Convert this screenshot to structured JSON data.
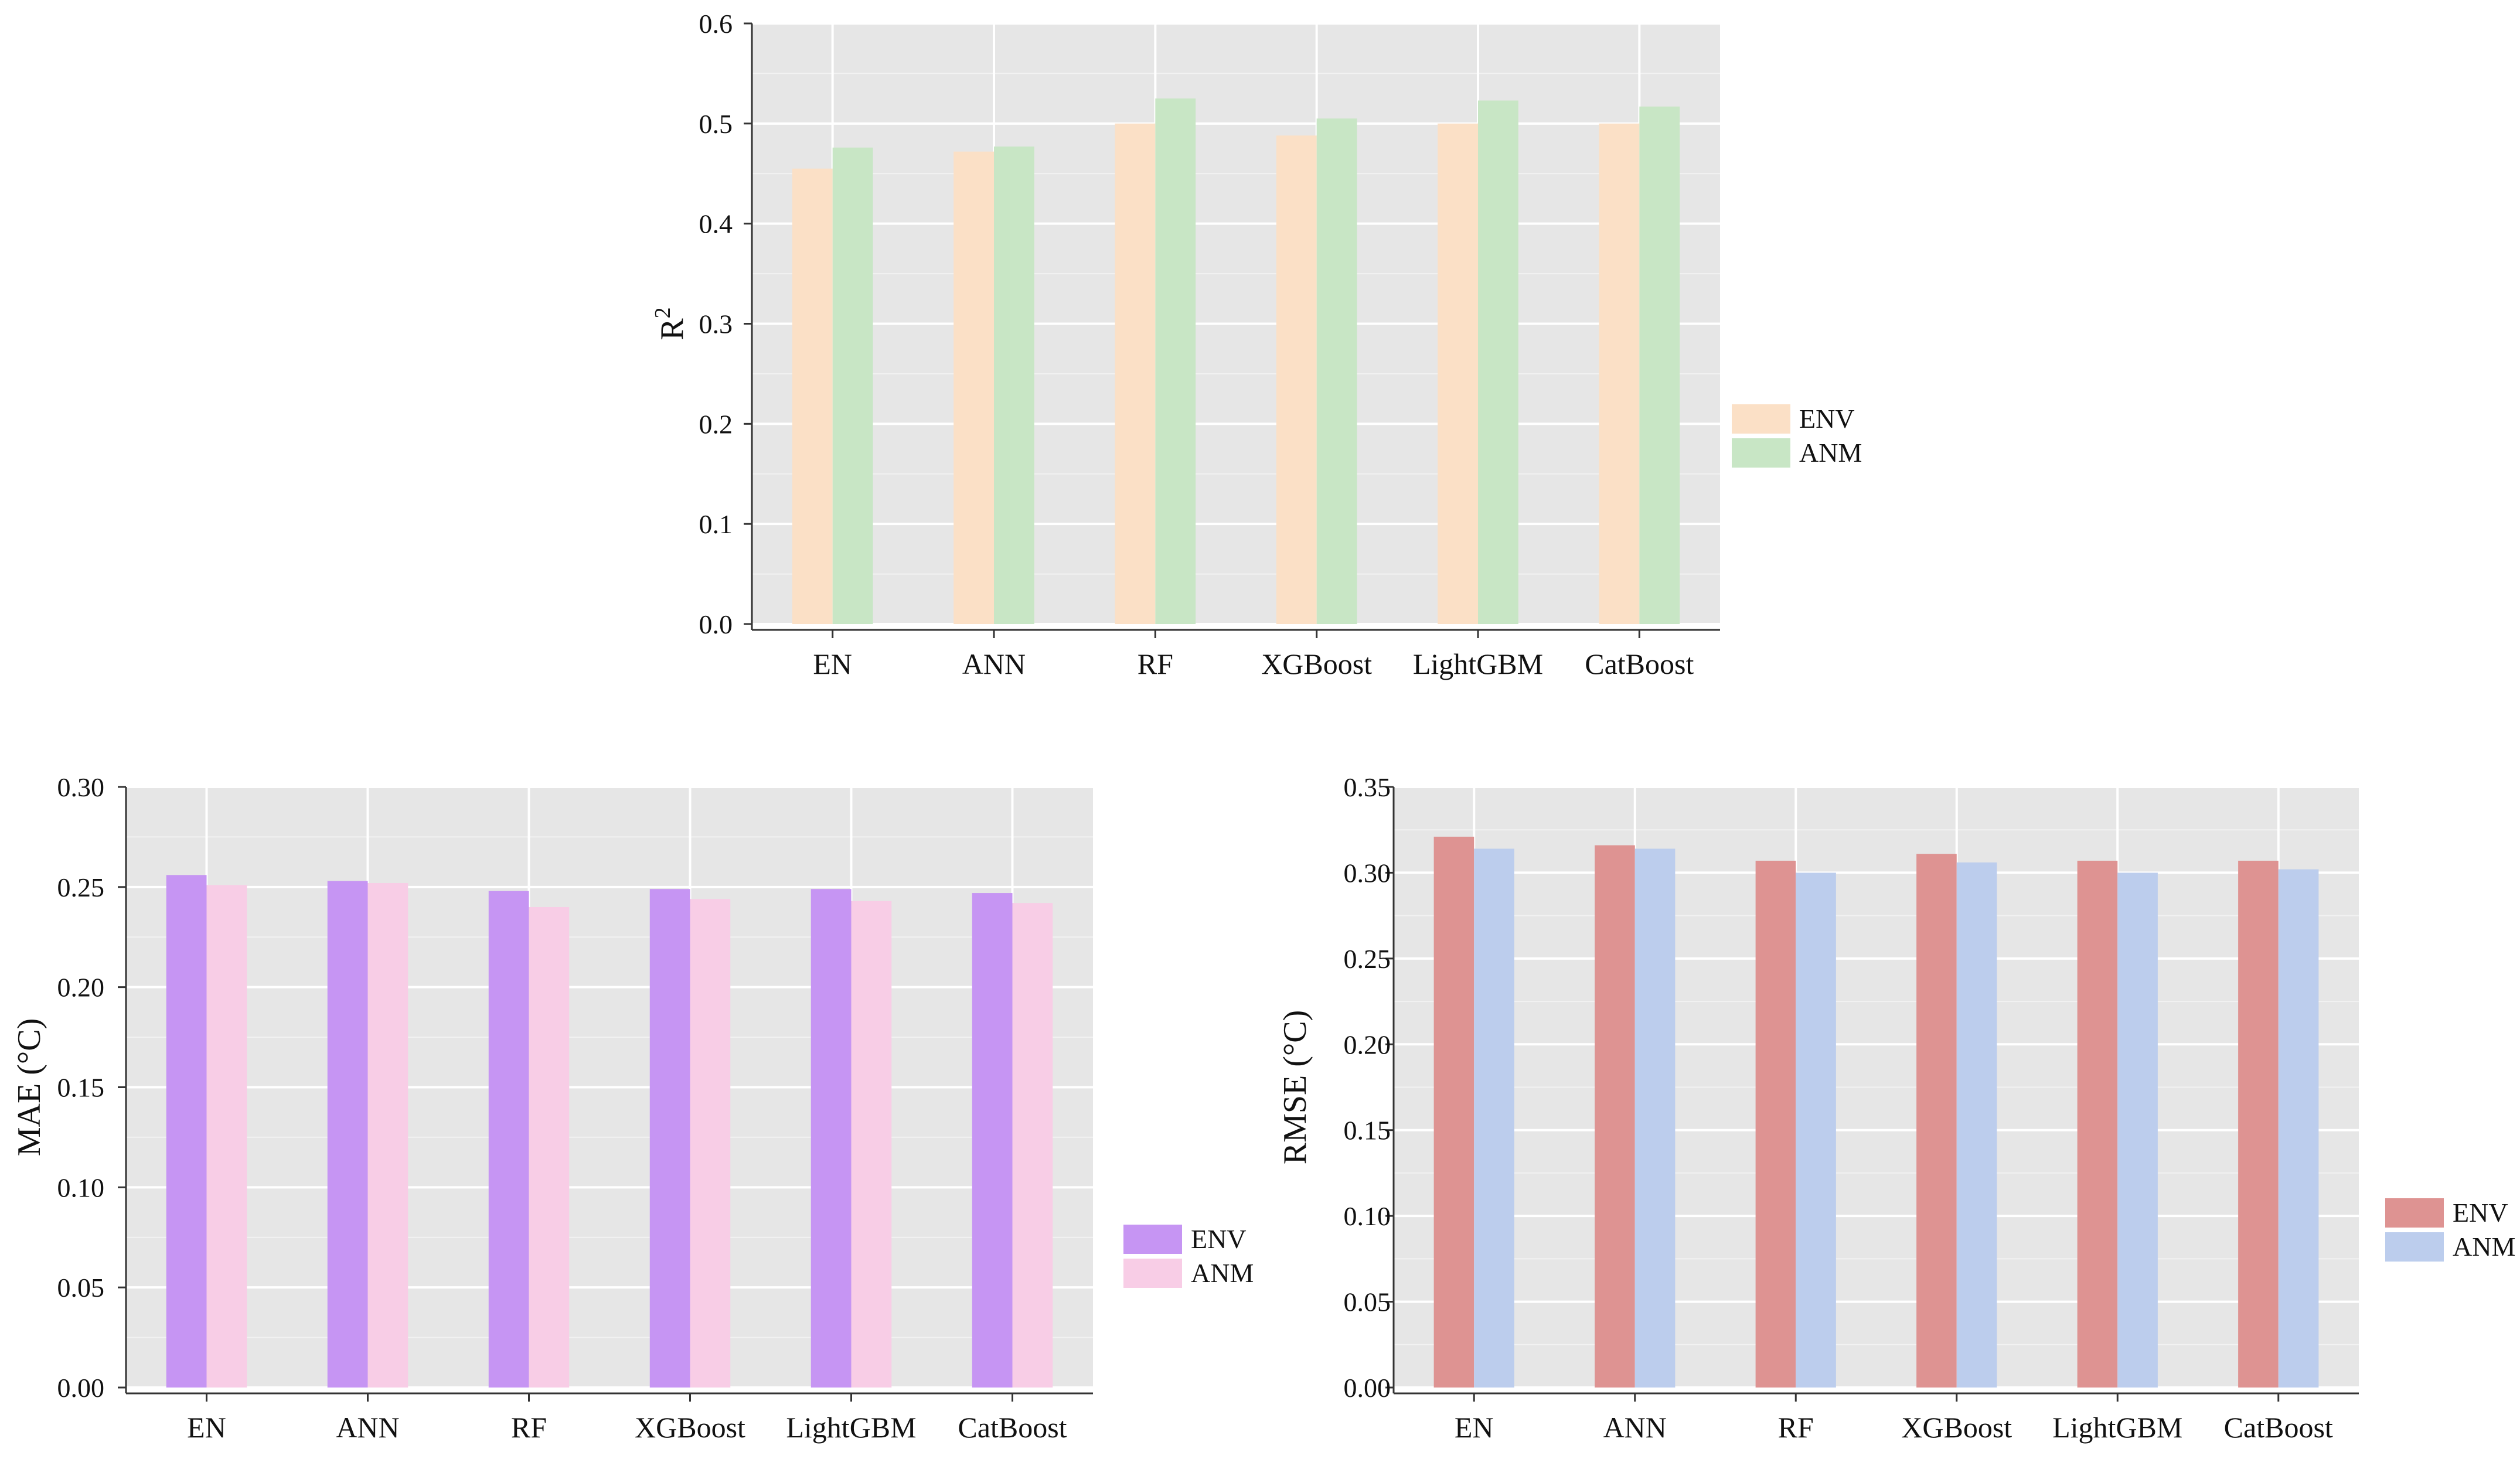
{
  "chart_data": [
    {
      "type": "bar",
      "panel": "top",
      "categories": [
        "EN",
        "ANN",
        "RF",
        "XGBoost",
        "LightGBM",
        "CatBoost"
      ],
      "series": [
        {
          "name": "ENV",
          "values": [
            0.455,
            0.472,
            0.5,
            0.488,
            0.5,
            0.5
          ],
          "color": "#fbe0c6"
        },
        {
          "name": "ANM",
          "values": [
            0.476,
            0.477,
            0.525,
            0.505,
            0.523,
            0.517
          ],
          "color": "#c8e6c5"
        }
      ],
      "ylabel": "R",
      "ylabel_sup": "2",
      "ylim": [
        0,
        0.6
      ],
      "yticks": [
        "0.0",
        "0.1",
        "0.2",
        "0.3",
        "0.4",
        "0.5",
        "0.6"
      ],
      "grid": true,
      "panel_background": "#e6e6e6",
      "legend_position": "right"
    },
    {
      "type": "bar",
      "panel": "bottom-left",
      "categories": [
        "EN",
        "ANN",
        "RF",
        "XGBoost",
        "LightGBM",
        "CatBoost"
      ],
      "series": [
        {
          "name": "ENV",
          "values": [
            0.256,
            0.253,
            0.248,
            0.249,
            0.249,
            0.247
          ],
          "color": "#c695f3"
        },
        {
          "name": "ANM",
          "values": [
            0.251,
            0.252,
            0.24,
            0.244,
            0.243,
            0.242
          ],
          "color": "#f8cde6"
        }
      ],
      "ylabel": "MAE (°C)",
      "ylim": [
        0,
        0.3
      ],
      "yticks": [
        "0.00",
        "0.05",
        "0.10",
        "0.15",
        "0.20",
        "0.25",
        "0.30"
      ],
      "grid": true,
      "panel_background": "#e6e6e6",
      "legend_position": "right"
    },
    {
      "type": "bar",
      "panel": "bottom-right",
      "categories": [
        "EN",
        "ANN",
        "RF",
        "XGBoost",
        "LightGBM",
        "CatBoost"
      ],
      "series": [
        {
          "name": "ENV",
          "values": [
            0.321,
            0.316,
            0.307,
            0.311,
            0.307,
            0.307
          ],
          "color": "#de9392"
        },
        {
          "name": "ANM",
          "values": [
            0.314,
            0.314,
            0.3,
            0.306,
            0.3,
            0.302
          ],
          "color": "#bccded"
        }
      ],
      "ylabel": "RMSE (°C)",
      "ylim": [
        0,
        0.35
      ],
      "yticks": [
        "0.00",
        "0.05",
        "0.10",
        "0.15",
        "0.20",
        "0.25",
        "0.30",
        "0.35"
      ],
      "grid": true,
      "panel_background": "#e6e6e6",
      "legend_position": "right"
    }
  ]
}
